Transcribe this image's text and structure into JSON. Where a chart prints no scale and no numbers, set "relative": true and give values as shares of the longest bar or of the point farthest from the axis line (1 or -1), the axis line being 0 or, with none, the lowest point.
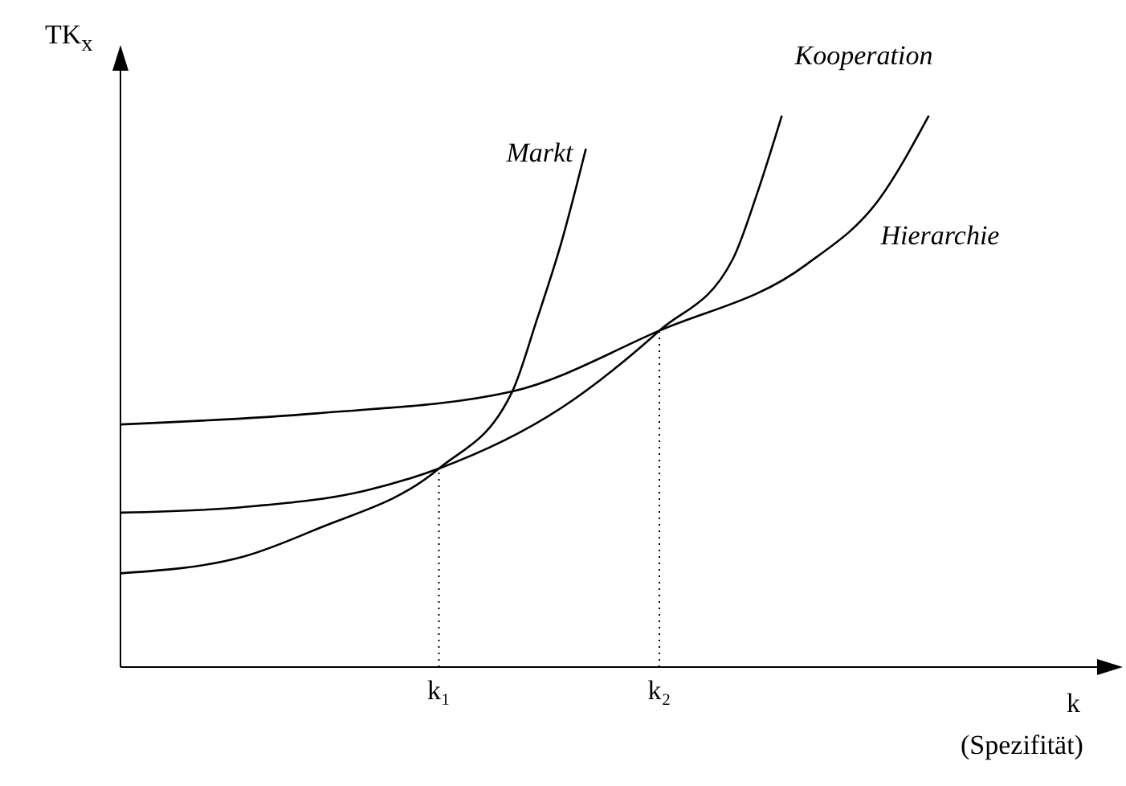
{
  "chart_data": {
    "type": "line",
    "relative": true,
    "ylabel": "TK$_{x}$",
    "xlabel": "k",
    "annotations": [
      "(Spezifität)"
    ],
    "categories": [
      null,
      null,
      null,
      null,
      null,
      null,
      null,
      null,
      null,
      null,
      null,
      null,
      null,
      "k₁",
      null,
      null,
      null,
      null,
      null,
      null,
      null,
      null,
      "k₂",
      null,
      null,
      null,
      null,
      null,
      null,
      null,
      null,
      null,
      null,
      null,
      null,
      null,
      null,
      null,
      null,
      null,
      null
    ],
    "marker": "none",
    "line_style": "solid",
    "ref_lines": [
      {
        "axis": "x",
        "value": "k₁",
        "line_style": "dotted",
        "color": "#000000"
      },
      {
        "axis": "x",
        "value": "k₂",
        "line_style": "dotted",
        "color": "#000000"
      }
    ],
    "series": [
      {
        "name": "Markt",
        "color": "#000000",
        "values": [
          0.17,
          null,
          null,
          null,
          null,
          0.2,
          null,
          null,
          0.25,
          null,
          null,
          null,
          null,
          0.36,
          null,
          null,
          0.5,
          0.63,
          0.77,
          0.94,
          null,
          null,
          null,
          null,
          null,
          null,
          null,
          null,
          null,
          null,
          null,
          null,
          null,
          null,
          null,
          null,
          null,
          null,
          null,
          null,
          null
        ]
      },
      {
        "name": "Kooperation",
        "color": "#000000",
        "values": [
          0.28,
          null,
          null,
          null,
          null,
          0.29,
          null,
          null,
          null,
          null,
          0.32,
          null,
          null,
          0.36,
          null,
          null,
          null,
          null,
          0.47,
          null,
          null,
          null,
          0.61,
          null,
          null,
          0.74,
          0.86,
          1.0,
          null,
          null,
          null,
          null,
          null,
          null,
          null,
          null,
          null,
          null,
          null,
          null,
          null
        ]
      },
      {
        "name": "Hierarchie",
        "color": "#000000",
        "values": [
          0.44,
          null,
          null,
          null,
          null,
          null,
          null,
          null,
          0.46,
          null,
          null,
          null,
          null,
          null,
          null,
          null,
          0.5,
          null,
          null,
          null,
          null,
          null,
          0.61,
          null,
          null,
          null,
          null,
          null,
          0.73,
          null,
          null,
          0.85,
          null,
          1.0,
          null,
          null,
          null,
          null,
          null,
          null,
          null
        ]
      }
    ]
  }
}
